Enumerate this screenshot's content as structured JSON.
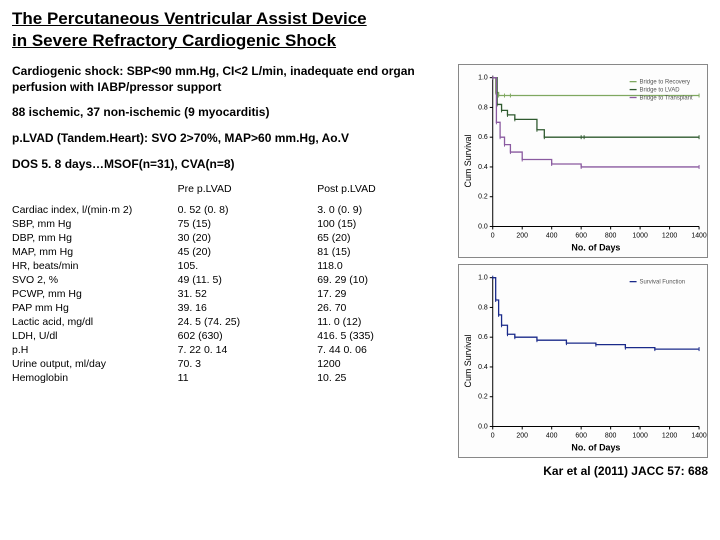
{
  "title_line1": "The Percutaneous Ventricular Assist Device",
  "title_line2": "in Severe Refractory Cardiogenic Shock",
  "desc1": "Cardiogenic shock: SBP<90 mm.Hg, CI<2 L/min, inadequate end organ perfusion with IABP/pressor support",
  "desc2": "88 ischemic, 37 non-ischemic (9 myocarditis)",
  "desc3": "p.LVAD (Tandem.Heart): SVO 2>70%, MAP>60 mm.Hg, Ao.V",
  "desc4": "DOS 5. 8 days…MSOF(n=31), CVA(n=8)",
  "table": {
    "header": [
      "",
      "Pre p.LVAD",
      "Post p.LVAD"
    ],
    "rows": [
      [
        "Cardiac index, l/(min·m 2)",
        "0. 52 (0. 8)",
        "3. 0 (0. 9)"
      ],
      [
        "SBP, mm Hg",
        " 75 (15)",
        "100 (15)"
      ],
      [
        "DBP, mm Hg",
        " 30 (20)",
        " 65 (20)"
      ],
      [
        "MAP, mm Hg",
        " 45 (20)",
        " 81 (15)"
      ],
      [
        "HR, beats/min",
        " 105.",
        " 118.0"
      ],
      [
        "SVO 2, %",
        " 49 (11. 5)",
        " 69. 29 (10)"
      ],
      [
        "PCWP, mm Hg",
        " 31. 52",
        " 17. 29"
      ],
      [
        "PAP mm Hg",
        "39. 16",
        "26. 70"
      ],
      [
        "Lactic acid, mg/dl",
        "24. 5 (74. 25)",
        " 11. 0 (12)"
      ],
      [
        "LDH, U/dl",
        " 602 (630)",
        " 416. 5 (335)"
      ],
      [
        "p.H",
        "7. 22 0. 14",
        " 7. 44 0. 06"
      ],
      [
        "Urine output, ml/day",
        " 70. 3",
        " 1200"
      ],
      [
        "Hemoglobin",
        " 11",
        " 10. 25"
      ]
    ]
  },
  "chart_top": {
    "ylabel": "Cum Survival",
    "xlabel": "No. of Days",
    "ylim": [
      0,
      1.0
    ],
    "yticks": [
      "0.0",
      "0.2",
      "0.4",
      "0.6",
      "0.8",
      "1.0"
    ],
    "xlim": [
      0,
      1400
    ],
    "xticks": [
      "0",
      "200",
      "400",
      "600",
      "800",
      "1000",
      "1200",
      "1400"
    ],
    "legend": [
      "Bridge to Recovery",
      "Bridge to LVAD",
      "Bridge to Transplant"
    ],
    "lines": [
      {
        "color": "#7fa860",
        "pts": [
          [
            0,
            1.0
          ],
          [
            20,
            0.9
          ],
          [
            40,
            0.88
          ],
          [
            80,
            0.88
          ],
          [
            120,
            0.88
          ],
          [
            1400,
            0.88
          ]
        ]
      },
      {
        "color": "#2f5a2f",
        "pts": [
          [
            0,
            1.0
          ],
          [
            30,
            0.82
          ],
          [
            60,
            0.78
          ],
          [
            100,
            0.75
          ],
          [
            150,
            0.72
          ],
          [
            300,
            0.65
          ],
          [
            350,
            0.6
          ],
          [
            600,
            0.6
          ],
          [
            620,
            0.6
          ],
          [
            1400,
            0.6
          ]
        ]
      },
      {
        "color": "#8a5aa0",
        "pts": [
          [
            0,
            1.0
          ],
          [
            25,
            0.7
          ],
          [
            50,
            0.6
          ],
          [
            80,
            0.55
          ],
          [
            120,
            0.5
          ],
          [
            200,
            0.45
          ],
          [
            400,
            0.42
          ],
          [
            600,
            0.4
          ],
          [
            1400,
            0.4
          ]
        ]
      }
    ]
  },
  "chart_bottom": {
    "ylabel": "Cum Survival",
    "xlabel": "No. of Days",
    "ylim": [
      0,
      1.0
    ],
    "yticks": [
      "0.0",
      "0.2",
      "0.4",
      "0.6",
      "0.8",
      "1.0"
    ],
    "xlim": [
      0,
      1400
    ],
    "xticks": [
      "0",
      "200",
      "400",
      "600",
      "800",
      "1000",
      "1200",
      "1400"
    ],
    "legend": [
      "Survival Function"
    ],
    "lines": [
      {
        "color": "#1a2a8a",
        "pts": [
          [
            0,
            1.0
          ],
          [
            20,
            0.85
          ],
          [
            40,
            0.75
          ],
          [
            60,
            0.68
          ],
          [
            100,
            0.62
          ],
          [
            150,
            0.6
          ],
          [
            300,
            0.58
          ],
          [
            500,
            0.56
          ],
          [
            700,
            0.55
          ],
          [
            900,
            0.53
          ],
          [
            1100,
            0.52
          ],
          [
            1400,
            0.52
          ]
        ]
      }
    ]
  },
  "reference": "Kar et al (2011) JACC 57: 688",
  "colors": {
    "text": "#000000",
    "bg": "#ffffff",
    "chart_border": "#888888"
  }
}
